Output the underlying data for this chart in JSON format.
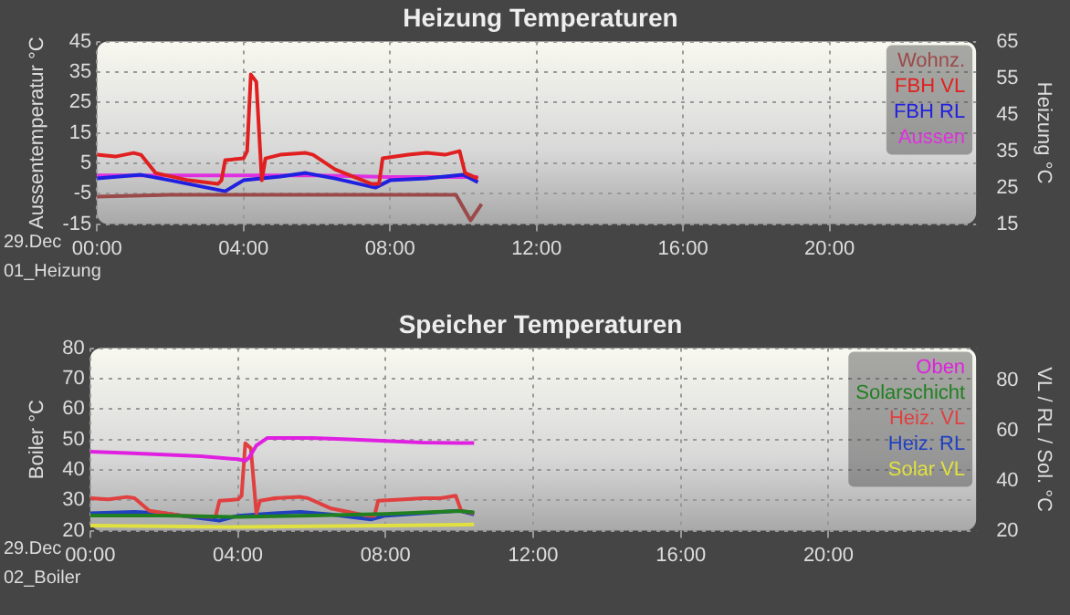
{
  "chart_data": [
    {
      "type": "line",
      "title": "Heizung Temperaturen",
      "ylabel": "Aussentemperatur °C",
      "y2label": "Heizung °C",
      "xlim": [
        0,
        24
      ],
      "xticks": [
        {
          "value": 0,
          "label": "00:00"
        },
        {
          "value": 4,
          "label": "04:00"
        },
        {
          "value": 8,
          "label": "08:00"
        },
        {
          "value": 12,
          "label": "12:00"
        },
        {
          "value": 16,
          "label": "16:00"
        },
        {
          "value": 20,
          "label": "20:00"
        }
      ],
      "ylim": [
        -15,
        45
      ],
      "yticks": [
        -15,
        -5,
        5,
        15,
        25,
        35,
        45
      ],
      "y2lim": [
        15,
        65
      ],
      "y2ticks": [
        15,
        25,
        35,
        45,
        55,
        65
      ],
      "grid": true,
      "legend": "top right",
      "annotations": [
        "29.Dec",
        "01_Heizung"
      ],
      "series": [
        {
          "name": "Wohnz.",
          "color": "#9b4a4a",
          "axis": "y2",
          "x": [
            0,
            2,
            4,
            6,
            8,
            9.8,
            10.2,
            10.5
          ],
          "values": [
            22.5,
            23,
            23,
            23,
            23,
            23,
            16,
            20.5
          ]
        },
        {
          "name": "FBH VL",
          "color": "#e02020",
          "axis": "y2",
          "x": [
            0,
            0.5,
            1,
            1.2,
            1.6,
            2.5,
            3.3,
            3.4,
            3.5,
            4.0,
            4.1,
            4.2,
            4.35,
            4.5,
            4.6,
            5,
            5.7,
            5.9,
            6.5,
            7.5,
            7.7,
            7.8,
            8.5,
            9,
            9.5,
            9.9,
            10.05,
            10.4
          ],
          "values": [
            34,
            33.5,
            34.5,
            34,
            29,
            27,
            26,
            27,
            32.5,
            33,
            35,
            56,
            54,
            27,
            33,
            34,
            34.5,
            34,
            30,
            26,
            26,
            33,
            34,
            34.5,
            34,
            35,
            29,
            27.5
          ]
        },
        {
          "name": "FBH RL",
          "color": "#2020e0",
          "axis": "y2",
          "x": [
            0,
            1.2,
            2,
            3,
            3.5,
            4,
            5,
            5.7,
            6.5,
            7.6,
            8,
            9,
            10,
            10.4
          ],
          "values": [
            27.5,
            28.5,
            27,
            25,
            24,
            27,
            28,
            29,
            27.5,
            25,
            27,
            27.5,
            28.5,
            26.5
          ]
        },
        {
          "name": "Aussen",
          "color": "#e030e0",
          "axis": "y",
          "x": [
            0,
            2,
            3.4,
            6,
            8,
            10,
            10.4
          ],
          "values": [
            1,
            1,
            1,
            1,
            0.5,
            0.5,
            0.5
          ]
        }
      ]
    },
    {
      "type": "line",
      "title": "Speicher Temperaturen",
      "ylabel": "Boiler °C",
      "y2label": "VL / RL / Sol. °C",
      "xlim": [
        0,
        24
      ],
      "xticks": [
        {
          "value": 0,
          "label": "00:00"
        },
        {
          "value": 4,
          "label": "04:00"
        },
        {
          "value": 8,
          "label": "08:00"
        },
        {
          "value": 12,
          "label": "12:00"
        },
        {
          "value": 16,
          "label": "16:00"
        },
        {
          "value": 20,
          "label": "20:00"
        }
      ],
      "ylim": [
        20,
        80
      ],
      "yticks": [
        20,
        30,
        40,
        50,
        60,
        70,
        80
      ],
      "y2lim": [
        20,
        93
      ],
      "y2ticks": [
        20,
        40,
        60,
        80
      ],
      "grid": true,
      "legend": "top right",
      "annotations": [
        "29.Dec",
        "02_Boiler"
      ],
      "series": [
        {
          "name": "Oben",
          "color": "#e020e0",
          "axis": "y",
          "x": [
            0,
            1,
            2,
            3,
            4,
            4.2,
            4.3,
            4.5,
            4.8,
            6,
            7,
            8,
            9,
            10,
            10.4
          ],
          "values": [
            46,
            45.5,
            45,
            44.5,
            43.5,
            43,
            44,
            48,
            50.5,
            50.5,
            50,
            49.5,
            49,
            48.8,
            48.8
          ]
        },
        {
          "name": "Solarschicht",
          "color": "#208020",
          "axis": "y",
          "x": [
            0,
            2,
            4,
            6,
            8,
            10,
            10.4
          ],
          "values": [
            25,
            25,
            24.5,
            25,
            25.5,
            26.5,
            26
          ]
        },
        {
          "name": "Heiz. VL",
          "color": "#e04040",
          "axis": "y2",
          "x": [
            0,
            0.5,
            1,
            1.2,
            1.6,
            2.5,
            3.3,
            3.4,
            3.5,
            4.0,
            4.1,
            4.2,
            4.35,
            4.5,
            4.6,
            5,
            5.7,
            5.9,
            6.5,
            7.5,
            7.7,
            7.8,
            8.5,
            9,
            9.5,
            9.9,
            10.05,
            10.4
          ],
          "values": [
            33,
            32.5,
            33.5,
            33,
            28,
            26,
            25.5,
            26,
            32,
            32.5,
            34,
            55,
            53,
            27,
            32,
            33,
            33.5,
            33,
            29,
            26,
            26,
            32,
            32.5,
            33,
            33,
            34,
            28,
            27
          ]
        },
        {
          "name": "Heiz. RL",
          "color": "#2040c0",
          "axis": "y2",
          "x": [
            0,
            1.2,
            2,
            3,
            3.5,
            4,
            5,
            5.7,
            6.5,
            7.6,
            8,
            9,
            10,
            10.4
          ],
          "values": [
            27,
            27.5,
            27,
            25,
            24,
            26,
            27,
            27.5,
            26.5,
            24.5,
            26,
            27,
            28,
            26.5
          ]
        },
        {
          "name": "Solar VL",
          "color": "#e0e040",
          "axis": "y2",
          "x": [
            0,
            4,
            8,
            10.4
          ],
          "values": [
            22,
            21.5,
            22,
            22.5
          ]
        }
      ]
    }
  ]
}
